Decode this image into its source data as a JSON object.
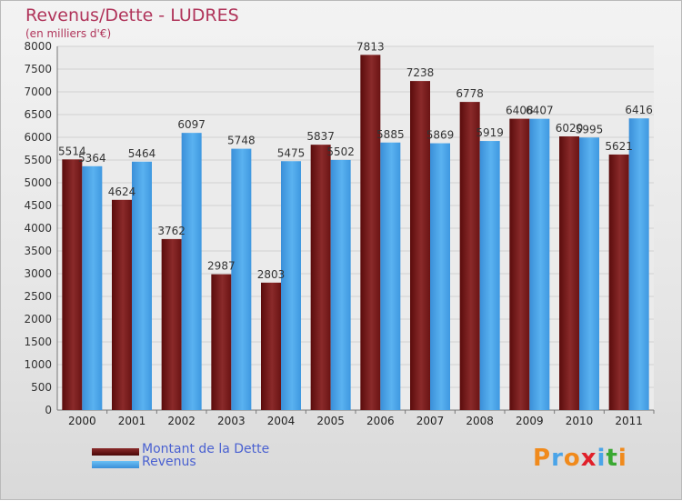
{
  "chart_data": {
    "type": "bar",
    "title": "Revenus/Dette - LUDRES",
    "subtitle": "(en milliers d'€)",
    "categories": [
      "2000",
      "2001",
      "2002",
      "2003",
      "2004",
      "2005",
      "2006",
      "2007",
      "2008",
      "2009",
      "2010",
      "2011"
    ],
    "series": [
      {
        "name": "Montant de la Dette",
        "color": "#7a1818",
        "values": [
          5514,
          4624,
          3762,
          2987,
          2803,
          5837,
          7813,
          7238,
          6778,
          6408,
          6020,
          5621
        ],
        "labels": [
          "5514",
          "4624",
          "3762",
          "2987",
          "2803",
          "5837",
          "7813",
          "7238",
          "6778",
          "6408",
          "6020",
          "5621"
        ]
      },
      {
        "name": "Revenus",
        "color": "#4aa4e8",
        "values": [
          5364,
          5464,
          6097,
          5748,
          5475,
          5502,
          5885,
          5869,
          5919,
          6407,
          5995,
          6416
        ],
        "labels": [
          "5364",
          "5464",
          "6097",
          "5748",
          "5475",
          "5502",
          "5885",
          "5869",
          "5919",
          "6407",
          "5995",
          "6416"
        ]
      }
    ],
    "ylim": [
      0,
      8000
    ],
    "yticks": [
      "0",
      "500",
      "1000",
      "1500",
      "2000",
      "2500",
      "3000",
      "3500",
      "4000",
      "4500",
      "5000",
      "5500",
      "6000",
      "6500",
      "7000",
      "7500",
      "8000"
    ],
    "grid": true,
    "legend_position": "bottom-left"
  },
  "logo": {
    "text": "Proxiti",
    "colors": [
      "#f08a1c",
      "#4aa4e8",
      "#f08a1c",
      "#e0202a",
      "#4aa4e8",
      "#3aa832",
      "#f08a1c"
    ]
  }
}
